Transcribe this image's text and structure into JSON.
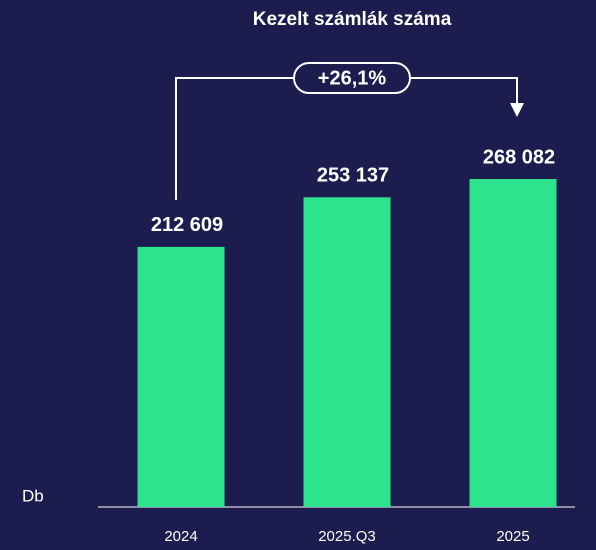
{
  "chart_data": {
    "type": "bar",
    "title": "Kezelt számlák száma",
    "categories": [
      "2024",
      "2025.Q3",
      "2025"
    ],
    "values": [
      212609,
      253137,
      268082
    ],
    "value_labels": [
      "212 609",
      "253 137",
      "268 082"
    ],
    "color": "#2de38e",
    "y_label": "Db",
    "annotation": "+26,1%"
  }
}
